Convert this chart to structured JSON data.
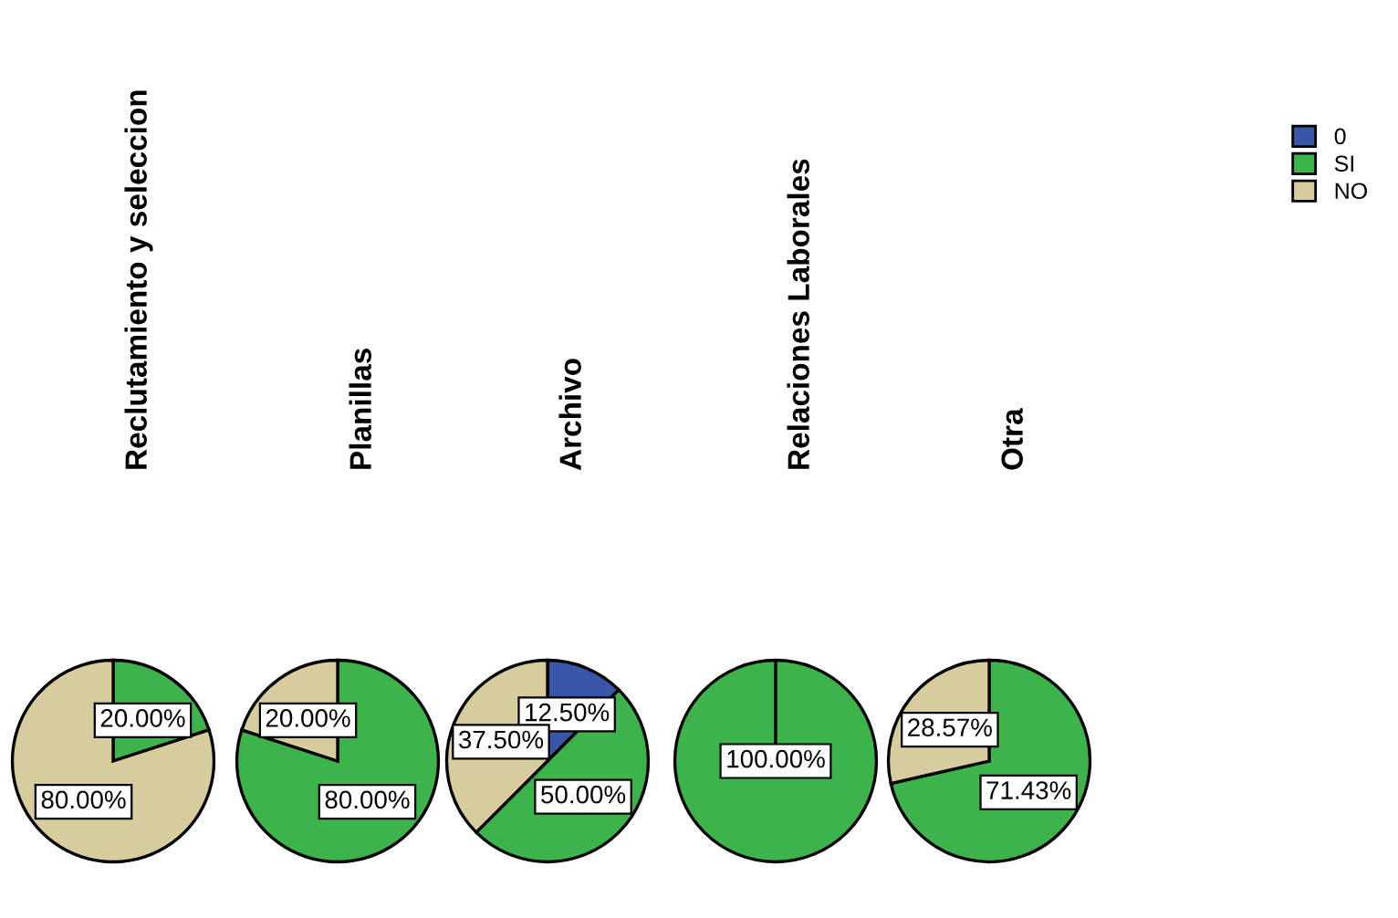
{
  "chart_data": [
    {
      "type": "pie",
      "title": "Reclutamiento y seleccion",
      "categories": [
        "0",
        "SI",
        "NO"
      ],
      "values": [
        0,
        20,
        80
      ],
      "colors": [
        "#3a56a8",
        "#3cb44b",
        "#d6cc9e"
      ],
      "value_labels": [
        null,
        "20.00%",
        "80.00%"
      ],
      "legend": "top right"
    },
    {
      "type": "pie",
      "title": "Planillas",
      "categories": [
        null,
        null,
        null
      ],
      "values": [
        0,
        80,
        20
      ],
      "colors": [
        "#3a56a8",
        "#3cb44b",
        "#d6cc9e"
      ],
      "value_labels": [
        null,
        "80.00%",
        "20.00%"
      ]
    },
    {
      "type": "pie",
      "title": "Archivo",
      "categories": [
        null,
        null,
        null
      ],
      "values": [
        12.5,
        50,
        37.5
      ],
      "colors": [
        "#3a56a8",
        "#3cb44b",
        "#d6cc9e"
      ],
      "value_labels": [
        "12.50%",
        "50.00%",
        "37.50%"
      ]
    },
    {
      "type": "pie",
      "title": "Relaciones Laborales",
      "categories": [
        null,
        null,
        null
      ],
      "values": [
        0,
        100,
        0
      ],
      "colors": [
        "#3a56a8",
        "#3cb44b",
        "#d6cc9e"
      ],
      "value_labels": [
        null,
        "100.00%",
        null
      ]
    },
    {
      "type": "pie",
      "title": "Otra",
      "categories": [
        null,
        null,
        null
      ],
      "values": [
        0,
        71.43,
        28.57
      ],
      "colors": [
        "#3a56a8",
        "#3cb44b",
        "#d6cc9e"
      ],
      "value_labels": [
        null,
        "71.43%",
        "28.57%"
      ]
    }
  ]
}
